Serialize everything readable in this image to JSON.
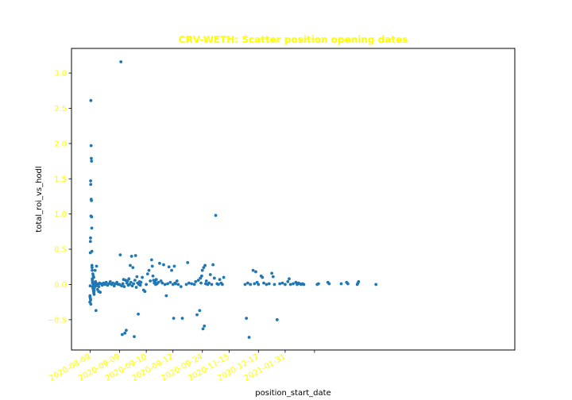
{
  "chart_data": {
    "type": "scatter",
    "title": "CRV-WETH: Scatter position opening dates",
    "xlabel": "position_start_date",
    "ylabel": "total_roi_vs_hodl",
    "x_type": "date",
    "xlim": [
      "2020-08-22",
      "2021-02-04"
    ],
    "ylim": [
      -0.93,
      3.35
    ],
    "x_ticks": [
      "2020-08-29",
      "2020-09-09",
      "2020-09-19",
      "2020-09-29",
      "2020-10-10",
      "2020-10-20",
      "2020-10-31",
      "2020-11-10",
      "2020-11-21"
    ],
    "x_tick_labels": [
      "2020-08-09",
      "2020-09-09",
      "2020-09-10",
      "2020-09-12",
      "2020-09-24",
      "2020-11-15",
      "2020-12-17",
      "2021-01-31",
      ""
    ],
    "y_ticks": [
      -0.5,
      0.0,
      0.5,
      1.0,
      1.5,
      2.0,
      2.5,
      3.0
    ],
    "y_tick_labels": [
      "−0.5",
      "0.0",
      "0.5",
      "1.0",
      "1.5",
      "2.0",
      "2.5",
      "3.0"
    ],
    "grid": false,
    "legend": "none",
    "colors": {
      "points": "#1f77b4",
      "title": "#ffff00",
      "tick_labels": "#ffff00",
      "axes": "#000000"
    },
    "series": [
      {
        "points": [
          [
            "2020-08-29T06",
            2.61
          ],
          [
            "2020-08-29T08",
            1.97
          ],
          [
            "2020-08-29T10",
            1.79
          ],
          [
            "2020-08-29T12",
            1.75
          ],
          [
            "2020-08-29T04",
            1.47
          ],
          [
            "2020-08-29T05",
            1.42
          ],
          [
            "2020-08-29T09",
            1.21
          ],
          [
            "2020-08-29T11",
            1.19
          ],
          [
            "2020-08-29T07",
            0.97
          ],
          [
            "2020-08-29T13",
            0.96
          ],
          [
            "2020-08-29T14",
            0.8
          ],
          [
            "2020-08-29T03",
            0.66
          ],
          [
            "2020-08-29T02",
            0.61
          ],
          [
            "2020-08-29T15",
            0.47
          ],
          [
            "2020-08-29T01",
            0.45
          ],
          [
            "2020-08-29T16",
            0.27
          ],
          [
            "2020-08-29T17",
            0.24
          ],
          [
            "2020-08-29T18",
            0.2
          ],
          [
            "2020-08-30T00",
            0.15
          ],
          [
            "2020-08-30T04",
            0.12
          ],
          [
            "2020-08-30T08",
            0.1
          ],
          [
            "2020-08-29T19",
            0.08
          ],
          [
            "2020-08-29T20",
            0.06
          ],
          [
            "2020-08-29T21",
            0.04
          ],
          [
            "2020-08-29T22",
            0.02
          ],
          [
            "2020-08-30T02",
            0.01
          ],
          [
            "2020-08-30T06",
            0.0
          ],
          [
            "2020-08-30T10",
            -0.01
          ],
          [
            "2020-08-29T00",
            -0.02
          ],
          [
            "2020-08-29T23",
            -0.03
          ],
          [
            "2020-08-30T01",
            -0.05
          ],
          [
            "2020-08-30T03",
            -0.06
          ],
          [
            "2020-08-30T05",
            -0.08
          ],
          [
            "2020-08-30T07",
            -0.1
          ],
          [
            "2020-08-30T09",
            -0.12
          ],
          [
            "2020-08-30T11",
            -0.14
          ],
          [
            "2020-08-28T22",
            -0.16
          ],
          [
            "2020-08-28T23",
            -0.18
          ],
          [
            "2020-08-29T02",
            -0.2
          ],
          [
            "2020-08-29T04",
            -0.22
          ],
          [
            "2020-08-28T21",
            -0.25
          ],
          [
            "2020-08-29T06",
            -0.28
          ],
          [
            "2020-08-30T14",
            -0.05
          ],
          [
            "2020-08-30T18",
            0.02
          ],
          [
            "2020-08-31T00",
            0.04
          ],
          [
            "2020-08-31T06",
            -0.02
          ],
          [
            "2020-08-31T12",
            0.01
          ],
          [
            "2020-08-31T18",
            -0.07
          ],
          [
            "2020-09-01T00",
            0.0
          ],
          [
            "2020-09-01T06",
            -0.03
          ],
          [
            "2020-09-01T12",
            0.02
          ],
          [
            "2020-09-01T18",
            -0.11
          ],
          [
            "2020-08-31T04",
            -0.37
          ],
          [
            "2020-08-30T20",
            0.2
          ],
          [
            "2020-08-31T09",
            0.26
          ],
          [
            "2020-08-30T12",
            -0.09
          ],
          [
            "2020-09-01T04",
            -0.1
          ],
          [
            "2020-09-02T00",
            0.01
          ],
          [
            "2020-09-02T12",
            -0.01
          ],
          [
            "2020-09-03T00",
            0.02
          ],
          [
            "2020-09-03T12",
            0.0
          ],
          [
            "2020-09-04T00",
            0.03
          ],
          [
            "2020-09-04T12",
            -0.01
          ],
          [
            "2020-09-05T00",
            0.01
          ],
          [
            "2020-09-05T12",
            0.04
          ],
          [
            "2020-09-06T00",
            0.0
          ],
          [
            "2020-09-06T12",
            0.02
          ],
          [
            "2020-09-07T00",
            -0.02
          ],
          [
            "2020-09-07T12",
            0.01
          ],
          [
            "2020-09-08T00",
            0.03
          ],
          [
            "2020-09-08T12",
            0.0
          ],
          [
            "2020-09-09T12",
            3.16
          ],
          [
            "2020-09-09T06",
            0.42
          ],
          [
            "2020-09-10T00",
            -0.71
          ],
          [
            "2020-09-11T00",
            -0.69
          ],
          [
            "2020-09-11T12",
            -0.65
          ],
          [
            "2020-09-10T12",
            0.07
          ],
          [
            "2020-09-11T06",
            0.06
          ],
          [
            "2020-09-12T00",
            0.05
          ],
          [
            "2020-09-12T12",
            0.08
          ],
          [
            "2020-09-13T00",
            0.27
          ],
          [
            "2020-09-13T12",
            0.4
          ],
          [
            "2020-09-14T00",
            0.24
          ],
          [
            "2020-09-14T12",
            -0.74
          ],
          [
            "2020-09-15T00",
            0.41
          ],
          [
            "2020-09-15T12",
            0.11
          ],
          [
            "2020-09-16T00",
            -0.42
          ],
          [
            "2020-09-16T12",
            0.04
          ],
          [
            "2020-09-09T00",
            0.0
          ],
          [
            "2020-09-09T18",
            -0.02
          ],
          [
            "2020-09-10T06",
            0.01
          ],
          [
            "2020-09-10T18",
            -0.03
          ],
          [
            "2020-09-11T18",
            0.02
          ],
          [
            "2020-09-12T06",
            -0.01
          ],
          [
            "2020-09-12T18",
            0.0
          ],
          [
            "2020-09-13T06",
            0.03
          ],
          [
            "2020-09-13T18",
            -0.02
          ],
          [
            "2020-09-14T06",
            0.01
          ],
          [
            "2020-09-14T18",
            0.06
          ],
          [
            "2020-09-15T06",
            -0.04
          ],
          [
            "2020-09-15T18",
            0.02
          ],
          [
            "2020-09-16T06",
            0.0
          ],
          [
            "2020-09-16T18",
            -0.01
          ],
          [
            "2020-09-17T00",
            0.03
          ],
          [
            "2020-09-17T12",
            0.1
          ],
          [
            "2020-09-18T00",
            -0.08
          ],
          [
            "2020-09-18T12",
            -0.1
          ],
          [
            "2020-09-19T00",
            0.0
          ],
          [
            "2020-09-19T12",
            0.15
          ],
          [
            "2020-09-20T00",
            0.2
          ],
          [
            "2020-09-20T12",
            0.05
          ],
          [
            "2020-09-21T00",
            0.35
          ],
          [
            "2020-09-21T06",
            0.26
          ],
          [
            "2020-09-21T12",
            0.12
          ],
          [
            "2020-09-21T18",
            0.06
          ],
          [
            "2020-09-22T00",
            0.02
          ],
          [
            "2020-09-22T06",
            0.04
          ],
          [
            "2020-09-22T12",
            0.0
          ],
          [
            "2020-09-22T18",
            0.07
          ],
          [
            "2020-09-23T00",
            0.01
          ],
          [
            "2020-09-23T12",
            0.03
          ],
          [
            "2020-09-24T00",
            0.3
          ],
          [
            "2020-09-24T12",
            0.05
          ],
          [
            "2020-09-25T00",
            0.02
          ],
          [
            "2020-09-25T12",
            0.28
          ],
          [
            "2020-09-26T00",
            0.0
          ],
          [
            "2020-09-26T12",
            -0.16
          ],
          [
            "2020-09-27T00",
            0.01
          ],
          [
            "2020-09-27T12",
            0.25
          ],
          [
            "2020-09-28T00",
            0.03
          ],
          [
            "2020-09-28T12",
            0.2
          ],
          [
            "2020-09-29T00",
            0.0
          ],
          [
            "2020-09-29T06",
            -0.48
          ],
          [
            "2020-09-29T12",
            0.26
          ],
          [
            "2020-09-29T18",
            0.02
          ],
          [
            "2020-09-30T00",
            0.01
          ],
          [
            "2020-09-30T12",
            0.05
          ],
          [
            "2020-10-01T00",
            0.0
          ],
          [
            "2020-10-02T00",
            -0.03
          ],
          [
            "2020-10-02T12",
            -0.48
          ],
          [
            "2020-10-04T00",
            0.0
          ],
          [
            "2020-10-04T12",
            0.31
          ],
          [
            "2020-10-05T00",
            0.02
          ],
          [
            "2020-10-06T00",
            0.01
          ],
          [
            "2020-10-07T00",
            0.0
          ],
          [
            "2020-10-07T12",
            0.04
          ],
          [
            "2020-10-08T00",
            -0.43
          ],
          [
            "2020-10-08T12",
            0.06
          ],
          [
            "2020-10-09T00",
            -0.37
          ],
          [
            "2020-10-09T06",
            0.09
          ],
          [
            "2020-10-09T12",
            0.02
          ],
          [
            "2020-10-09T18",
            0.12
          ],
          [
            "2020-10-10T00",
            0.2
          ],
          [
            "2020-10-10T06",
            -0.63
          ],
          [
            "2020-10-10T12",
            0.24
          ],
          [
            "2020-10-10T18",
            -0.59
          ],
          [
            "2020-10-11T00",
            0.27
          ],
          [
            "2020-10-11T06",
            0.01
          ],
          [
            "2020-10-11T12",
            0.05
          ],
          [
            "2020-10-12T00",
            0.0
          ],
          [
            "2020-10-12T12",
            0.02
          ],
          [
            "2020-10-13T00",
            0.14
          ],
          [
            "2020-10-13T12",
            0.0
          ],
          [
            "2020-10-14T00",
            0.28
          ],
          [
            "2020-10-14T12",
            0.09
          ],
          [
            "2020-10-15T00",
            0.98
          ],
          [
            "2020-10-15T12",
            0.01
          ],
          [
            "2020-10-16T00",
            0.0
          ],
          [
            "2020-10-16T12",
            0.07
          ],
          [
            "2020-10-17T00",
            0.02
          ],
          [
            "2020-10-17T12",
            0.0
          ],
          [
            "2020-10-18T00",
            0.1
          ],
          [
            "2020-10-26T00",
            0.0
          ],
          [
            "2020-10-26T12",
            -0.48
          ],
          [
            "2020-10-27T00",
            0.02
          ],
          [
            "2020-10-27T12",
            -0.75
          ],
          [
            "2020-10-28T00",
            0.0
          ],
          [
            "2020-10-29T00",
            0.2
          ],
          [
            "2020-10-29T12",
            0.01
          ],
          [
            "2020-10-30T00",
            0.18
          ],
          [
            "2020-10-30T12",
            0.03
          ],
          [
            "2020-10-31T00",
            0.0
          ],
          [
            "2020-11-01T00",
            0.12
          ],
          [
            "2020-11-01T12",
            0.1
          ],
          [
            "2020-11-02T00",
            0.02
          ],
          [
            "2020-11-03T00",
            0.0
          ],
          [
            "2020-11-04T00",
            0.01
          ],
          [
            "2020-11-05T00",
            0.16
          ],
          [
            "2020-11-05T12",
            0.11
          ],
          [
            "2020-11-06T00",
            0.0
          ],
          [
            "2020-11-07T00",
            -0.5
          ],
          [
            "2020-11-08T00",
            0.01
          ],
          [
            "2020-11-09T00",
            0.02
          ],
          [
            "2020-11-10T00",
            0.0
          ],
          [
            "2020-11-11T00",
            0.04
          ],
          [
            "2020-11-11T12",
            0.08
          ],
          [
            "2020-11-12T00",
            0.0
          ],
          [
            "2020-11-13T00",
            0.01
          ],
          [
            "2020-11-14T00",
            0.03
          ],
          [
            "2020-11-14T12",
            0.0
          ],
          [
            "2020-11-15T00",
            0.02
          ],
          [
            "2020-11-15T12",
            0.01
          ],
          [
            "2020-11-16T00",
            0.0
          ],
          [
            "2020-11-16T12",
            0.01
          ],
          [
            "2020-11-17T00",
            0.0
          ],
          [
            "2020-11-22T00",
            0.0
          ],
          [
            "2020-11-22T12",
            0.01
          ],
          [
            "2020-11-26T00",
            0.03
          ],
          [
            "2020-11-26T12",
            0.01
          ],
          [
            "2020-12-01T00",
            0.01
          ],
          [
            "2020-12-03T00",
            0.03
          ],
          [
            "2020-12-03T12",
            0.01
          ],
          [
            "2020-12-07T00",
            0.0
          ],
          [
            "2020-12-07T06",
            0.02
          ],
          [
            "2020-12-07T12",
            0.04
          ],
          [
            "2020-12-14T00",
            0.0
          ]
        ]
      }
    ]
  }
}
